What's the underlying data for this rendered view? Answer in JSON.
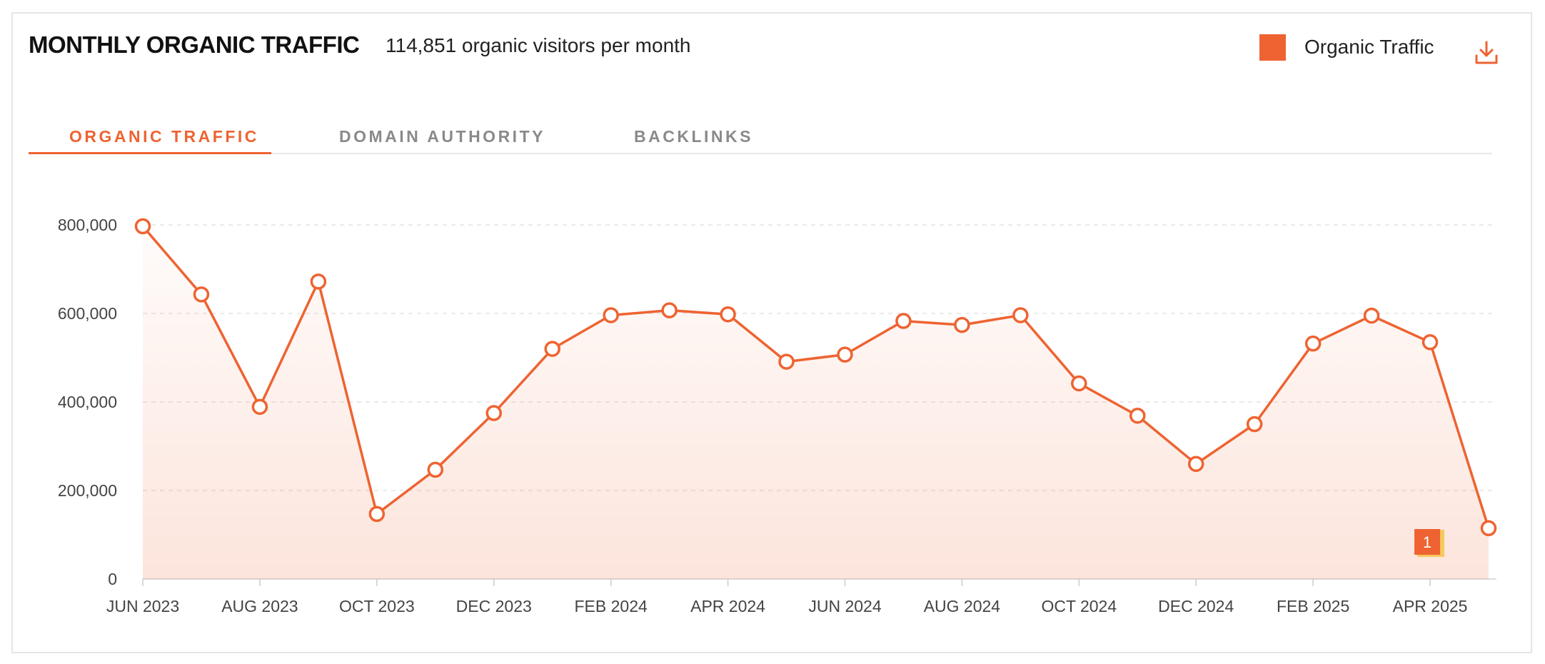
{
  "header": {
    "title": "MONTHLY ORGANIC TRAFFIC",
    "subtitle": "114,851 organic visitors per month"
  },
  "legend": {
    "label": "Organic Traffic",
    "color": "#ee6331"
  },
  "toolbar": {
    "download_icon": "download-icon"
  },
  "tabs": [
    {
      "label": "ORGANIC TRAFFIC",
      "active": true
    },
    {
      "label": "DOMAIN AUTHORITY",
      "active": false
    },
    {
      "label": "BACKLINKS",
      "active": false
    }
  ],
  "annotation": {
    "label": "1"
  },
  "chart_data": {
    "type": "line",
    "title": "MONTHLY ORGANIC TRAFFIC",
    "xlabel": "",
    "ylabel": "",
    "ylim": [
      0,
      800000
    ],
    "yticks": [
      0,
      200000,
      400000,
      600000,
      800000
    ],
    "ytick_labels": [
      "0",
      "200,000",
      "400,000",
      "600,000",
      "800,000"
    ],
    "xtick_labels": [
      "JUN 2023",
      "AUG 2023",
      "OCT 2023",
      "DEC 2023",
      "FEB 2024",
      "APR 2024",
      "JUN 2024",
      "AUG 2024",
      "OCT 2024",
      "DEC 2024",
      "FEB 2025",
      "APR 2025"
    ],
    "xtick_indices": [
      0,
      2,
      4,
      6,
      8,
      10,
      12,
      14,
      16,
      18,
      20,
      22
    ],
    "categories": [
      "Jun 2023",
      "Jul 2023",
      "Aug 2023",
      "Sep 2023",
      "Oct 2023",
      "Nov 2023",
      "Dec 2023",
      "Jan 2024",
      "Feb 2024",
      "Mar 2024",
      "Apr 2024",
      "May 2024",
      "Jun 2024",
      "Jul 2024",
      "Aug 2024",
      "Sep 2024",
      "Oct 2024",
      "Nov 2024",
      "Dec 2024",
      "Jan 2025",
      "Feb 2025",
      "Mar 2025",
      "Apr 2025",
      "May 2025"
    ],
    "series": [
      {
        "name": "Organic Traffic",
        "values": [
          797000,
          643000,
          389000,
          672000,
          147000,
          247000,
          375000,
          520000,
          596000,
          607000,
          598000,
          491000,
          507000,
          583000,
          574000,
          596000,
          442000,
          369000,
          260000,
          350000,
          532000,
          595000,
          535000,
          114851
        ]
      }
    ],
    "grid": "horizontal-dashed",
    "legend": "top-right",
    "annotation_index": 22
  }
}
